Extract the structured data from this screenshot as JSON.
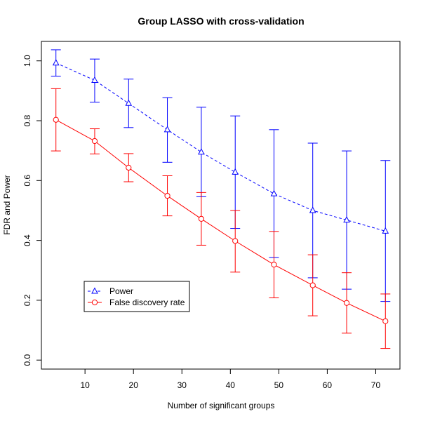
{
  "chart_data": {
    "type": "line",
    "title": "Group LASSO with cross-validation",
    "xlabel": "Number of significant groups",
    "ylabel": "FDR and Power",
    "xlim": [
      1,
      75
    ],
    "ylim": [
      -0.03,
      1.065
    ],
    "xticks": [
      10,
      20,
      30,
      40,
      50,
      60,
      70
    ],
    "xtick_labels": [
      "10",
      "20",
      "30",
      "40",
      "50",
      "60",
      "70"
    ],
    "yticks": [
      0.0,
      0.2,
      0.4,
      0.6,
      0.8,
      1.0
    ],
    "ytick_labels": [
      "0.0",
      "0.2",
      "0.4",
      "0.6",
      "0.8",
      "1.0"
    ],
    "x": [
      4,
      12,
      19,
      27,
      34,
      41,
      49,
      57,
      64,
      72
    ],
    "legend_position": "bottom-left",
    "series": [
      {
        "name": "Power",
        "color": "#0000ff",
        "marker": "triangle",
        "line_style": "dashed",
        "values": [
          0.993,
          0.935,
          0.858,
          0.77,
          0.695,
          0.628,
          0.556,
          0.5,
          0.468,
          0.431
        ],
        "lower": [
          0.949,
          0.862,
          0.777,
          0.661,
          0.546,
          0.44,
          0.343,
          0.275,
          0.237,
          0.196
        ],
        "upper": [
          1.037,
          1.006,
          0.939,
          0.877,
          0.845,
          0.816,
          0.77,
          0.725,
          0.699,
          0.667
        ]
      },
      {
        "name": "False discovery rate",
        "color": "#ff0000",
        "marker": "circle",
        "line_style": "solid",
        "values": [
          0.803,
          0.732,
          0.643,
          0.549,
          0.472,
          0.398,
          0.319,
          0.25,
          0.191,
          0.13
        ],
        "lower": [
          0.699,
          0.689,
          0.596,
          0.482,
          0.384,
          0.294,
          0.208,
          0.148,
          0.09,
          0.039
        ],
        "upper": [
          0.907,
          0.773,
          0.69,
          0.616,
          0.56,
          0.5,
          0.43,
          0.352,
          0.292,
          0.221
        ]
      }
    ]
  }
}
